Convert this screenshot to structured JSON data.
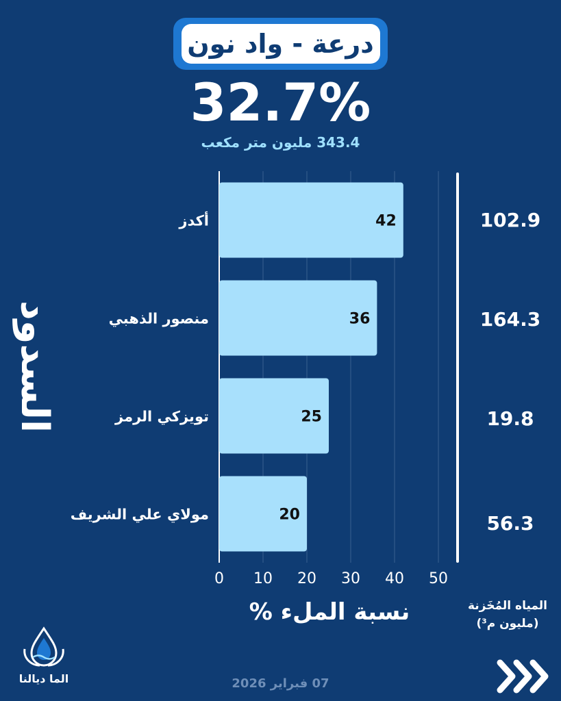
{
  "header": {
    "title": "درعة - واد نون",
    "percentage": "32.7%",
    "volume": "343.4 مليون متر مكعب"
  },
  "side_title": "السدود",
  "chart_data": {
    "type": "bar",
    "orientation": "horizontal",
    "categories": [
      "أكدز",
      "منصور الذهبي",
      "تويزكي الرمز",
      "مولاي علي الشريف"
    ],
    "values": [
      42,
      36,
      25,
      20
    ],
    "xlabel": "نسبة الملء %",
    "xlim": [
      0,
      50
    ],
    "xticks": [
      0,
      10,
      20,
      30,
      40,
      50
    ],
    "grid": true,
    "bar_color": "#a8e0fc"
  },
  "stored_water": {
    "label": "المياه المُخَزنة (مليون م³)",
    "values": [
      "102.9",
      "164.3",
      "19.8",
      "56.3"
    ]
  },
  "footer": {
    "date": "07 فبراير 2026",
    "logo_text": "الما ديالنا",
    "next_icon": "chevrons-right-icon"
  },
  "colors": {
    "background": "#0f3c73",
    "accent": "#1e78d2",
    "bar": "#a8e0fc",
    "subtitle": "#9fe0ff"
  }
}
